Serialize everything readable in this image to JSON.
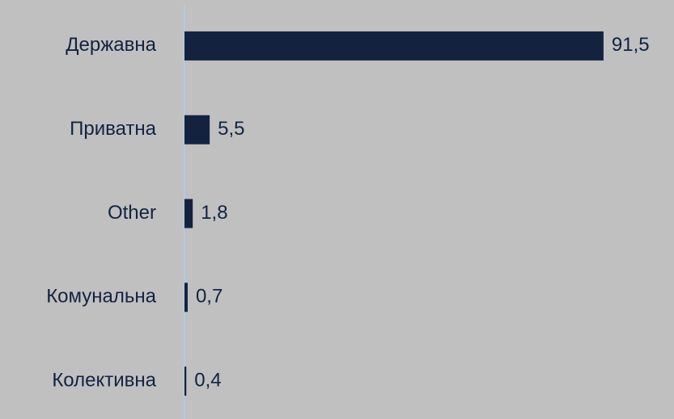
{
  "chart_data": {
    "type": "barh",
    "categories": [
      "Державна",
      "Приватна",
      "Other",
      "Комунальна",
      "Колективна"
    ],
    "values": [
      91.5,
      5.5,
      1.8,
      0.7,
      0.4
    ],
    "value_labels": [
      "91,5",
      "5,5",
      "1,8",
      "0,7",
      "0,4"
    ],
    "color": "#13233f",
    "xlim": [
      0,
      100
    ]
  }
}
